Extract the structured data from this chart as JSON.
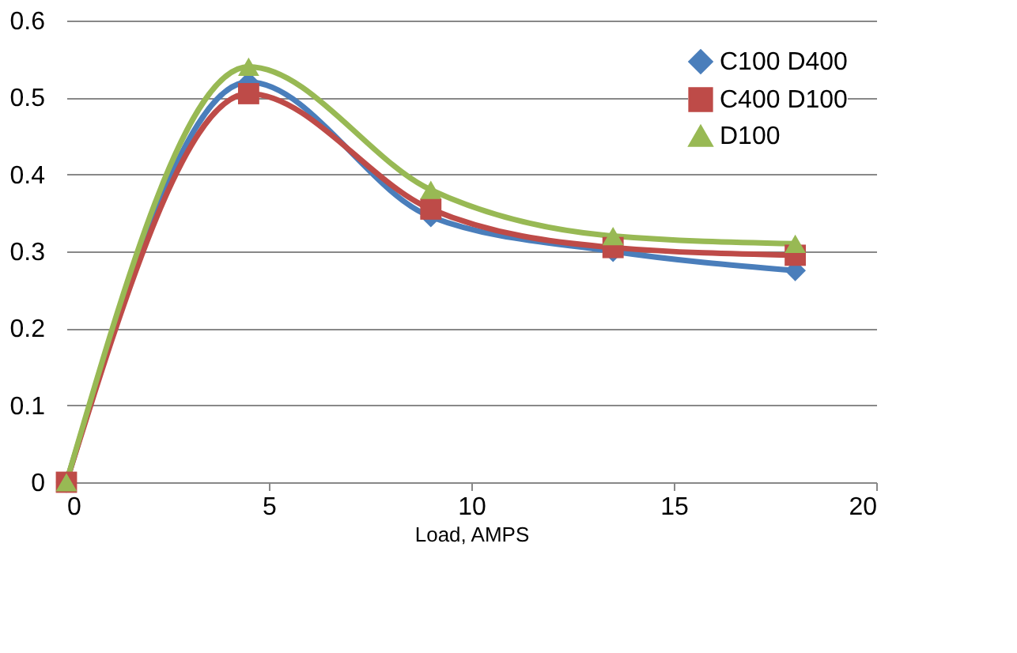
{
  "chart_data": {
    "type": "line",
    "xlabel": "Load, AMPS",
    "x": [
      0,
      4.5,
      9,
      13.5,
      18
    ],
    "xlim": [
      0,
      20
    ],
    "xticks": [
      0,
      5,
      10,
      15,
      20
    ],
    "ylim": [
      0,
      0.6
    ],
    "yticks": [
      0,
      0.1,
      0.2,
      0.3,
      0.4,
      0.5,
      0.6
    ],
    "grid": "y",
    "legend": "top right",
    "line_style": "solid",
    "series": [
      {
        "name": "C100 D400",
        "color": "#4a7ebb",
        "marker": "diamond",
        "values": [
          0,
          0.52,
          0.345,
          0.3,
          0.275
        ]
      },
      {
        "name": "C400 D100",
        "color": "#be4b48",
        "marker": "square",
        "values": [
          0,
          0.505,
          0.355,
          0.305,
          0.295
        ]
      },
      {
        "name": "D100",
        "color": "#98b954",
        "marker": "triangle",
        "values": [
          0,
          0.54,
          0.38,
          0.32,
          0.31
        ]
      }
    ]
  }
}
